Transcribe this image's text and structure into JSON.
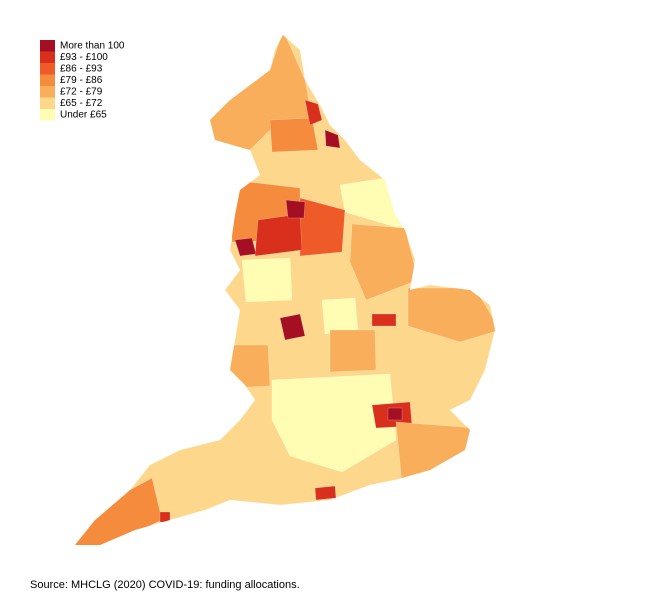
{
  "legend": {
    "items": [
      {
        "label": "More than 100",
        "color": "#a50f24"
      },
      {
        "label": "£93 - £100",
        "color": "#d9301e"
      },
      {
        "label": "£86 - £93",
        "color": "#ee5b28"
      },
      {
        "label": "£79 - £86",
        "color": "#f58b3c"
      },
      {
        "label": "£72 - £79",
        "color": "#f9ae5b"
      },
      {
        "label": "£65 - £72",
        "color": "#fdd88c"
      },
      {
        "label": "Under £65",
        "color": "#fffdb4"
      }
    ]
  },
  "source": "Source: MHCLG (2020) COVID-19: funding allocations."
}
